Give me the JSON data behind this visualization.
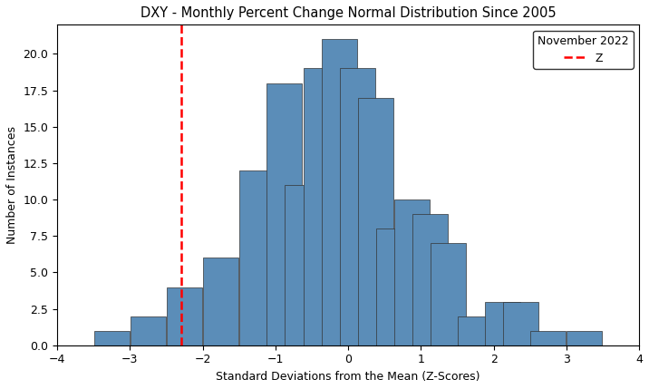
{
  "title": "DXY - Monthly Percent Change Normal Distribution Since 2005",
  "xlabel": "Standard Deviations from the Mean (Z-Scores)",
  "ylabel": "Number of Instances",
  "xlim": [
    -4,
    4
  ],
  "ylim": [
    0,
    22
  ],
  "yticks": [
    0.0,
    2.5,
    5.0,
    7.5,
    10.0,
    12.5,
    15.0,
    17.5,
    20.0
  ],
  "xticks": [
    -4,
    -3,
    -2,
    -1,
    0,
    1,
    2,
    3,
    4
  ],
  "bar_color": "#5b8db8",
  "bar_edgecolor": "#333333",
  "dashed_line_x": -2.3,
  "dashed_line_color": "red",
  "legend_title": "November 2022",
  "legend_label": "Z",
  "bin_width": 0.5,
  "bar_heights": [
    1,
    2,
    4,
    6,
    12,
    18,
    11,
    19,
    21,
    19,
    17,
    8,
    10,
    9,
    7,
    2,
    3,
    3,
    1,
    1
  ]
}
